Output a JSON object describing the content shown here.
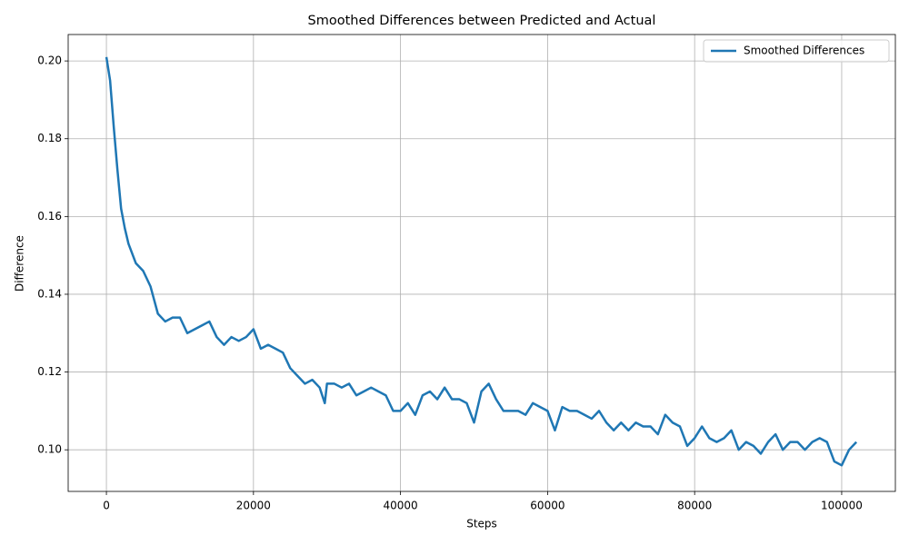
{
  "chart_data": {
    "type": "line",
    "title": "Smoothed Differences between Predicted and Actual",
    "x_label": "Steps",
    "y_label": "Difference",
    "legend": "upper right",
    "grid": true,
    "xlim": [
      -5200,
      107300
    ],
    "ylim": [
      0.0893,
      0.2068
    ],
    "xticks": [
      0,
      20000,
      40000,
      60000,
      80000,
      100000
    ],
    "yticks": [
      {
        "value": 0.1,
        "label": "0.10"
      },
      0.12,
      0.14,
      0.16,
      0.18,
      {
        "value": 0.2,
        "label": "0.20"
      }
    ],
    "x": [
      0,
      500,
      1000,
      1500,
      2000,
      2500,
      3000,
      4000,
      5000,
      6000,
      7000,
      8000,
      9000,
      10000,
      11000,
      12000,
      13000,
      14000,
      15000,
      16000,
      17000,
      18000,
      19000,
      20000,
      21000,
      22000,
      23000,
      24000,
      25000,
      26000,
      27000,
      28000,
      29000,
      29700,
      30000,
      31000,
      32000,
      33000,
      34000,
      35000,
      36000,
      37000,
      38000,
      39000,
      40000,
      41000,
      42000,
      43000,
      44000,
      45000,
      46000,
      47000,
      48000,
      49000,
      50000,
      51000,
      52000,
      53000,
      54000,
      55000,
      56000,
      57000,
      58000,
      59000,
      60000,
      61000,
      62000,
      63000,
      64000,
      65000,
      66000,
      67000,
      68000,
      69000,
      70000,
      71000,
      72000,
      73000,
      74000,
      75000,
      76000,
      77000,
      78000,
      79000,
      80000,
      81000,
      82000,
      83000,
      84000,
      85000,
      86000,
      87000,
      88000,
      89000,
      90000,
      91000,
      92000,
      93000,
      94000,
      95000,
      96000,
      97000,
      98000,
      99000,
      100000,
      101000,
      102000
    ],
    "series": [
      {
        "name": "Smoothed Differences",
        "color": "#1f77b4",
        "values": [
          0.201,
          0.195,
          0.183,
          0.172,
          0.162,
          0.157,
          0.153,
          0.148,
          0.146,
          0.142,
          0.135,
          0.133,
          0.134,
          0.134,
          0.13,
          0.131,
          0.132,
          0.133,
          0.129,
          0.127,
          0.129,
          0.128,
          0.129,
          0.131,
          0.126,
          0.127,
          0.126,
          0.125,
          0.121,
          0.119,
          0.117,
          0.118,
          0.116,
          0.112,
          0.117,
          0.117,
          0.116,
          0.117,
          0.114,
          0.115,
          0.116,
          0.115,
          0.114,
          0.11,
          0.11,
          0.112,
          0.109,
          0.114,
          0.115,
          0.113,
          0.116,
          0.113,
          0.113,
          0.112,
          0.107,
          0.115,
          0.117,
          0.113,
          0.11,
          0.11,
          0.11,
          0.109,
          0.112,
          0.111,
          0.11,
          0.105,
          0.111,
          0.11,
          0.11,
          0.109,
          0.108,
          0.11,
          0.107,
          0.105,
          0.107,
          0.105,
          0.107,
          0.106,
          0.106,
          0.104,
          0.109,
          0.107,
          0.106,
          0.101,
          0.103,
          0.106,
          0.103,
          0.102,
          0.103,
          0.105,
          0.1,
          0.102,
          0.101,
          0.099,
          0.102,
          0.104,
          0.1,
          0.102,
          0.102,
          0.1,
          0.102,
          0.103,
          0.102,
          0.097,
          0.096,
          0.1,
          0.102
        ]
      }
    ]
  }
}
